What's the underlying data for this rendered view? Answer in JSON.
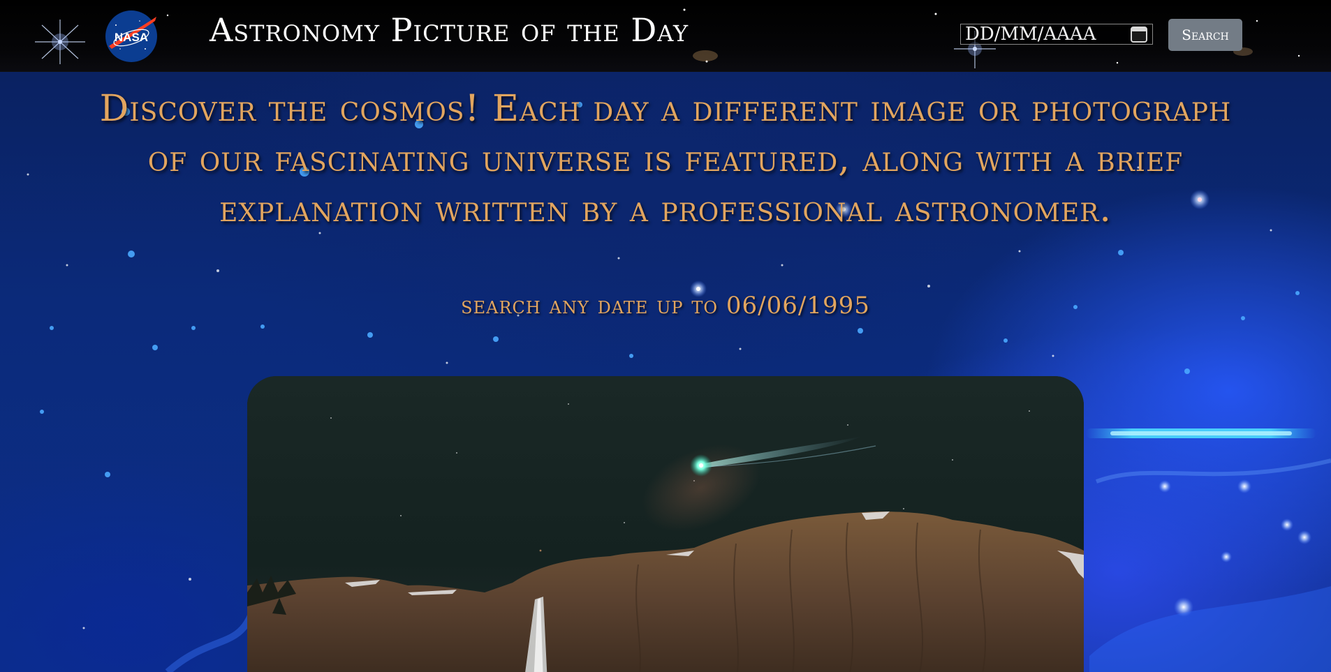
{
  "header": {
    "logo_text": "NASA",
    "title": "Astronomy Picture of the Day",
    "date_input": {
      "placeholder": "DD/MM/AAAA",
      "value": "DD/MM/AAAA"
    },
    "search_label": "Search"
  },
  "intro": {
    "text": "Discover the cosmos! Each day a different image or photograph of our fascinating universe is featured, along with a brief explanation written by a professional astronomer.",
    "search_hint": "search any date up to 06/06/1995"
  },
  "picture": {
    "subject": "comet over granite cliff with waterfall at night"
  },
  "colors": {
    "accent_text": "#e2a55f",
    "header_bg": "#000000",
    "button_bg": "#737c86"
  }
}
